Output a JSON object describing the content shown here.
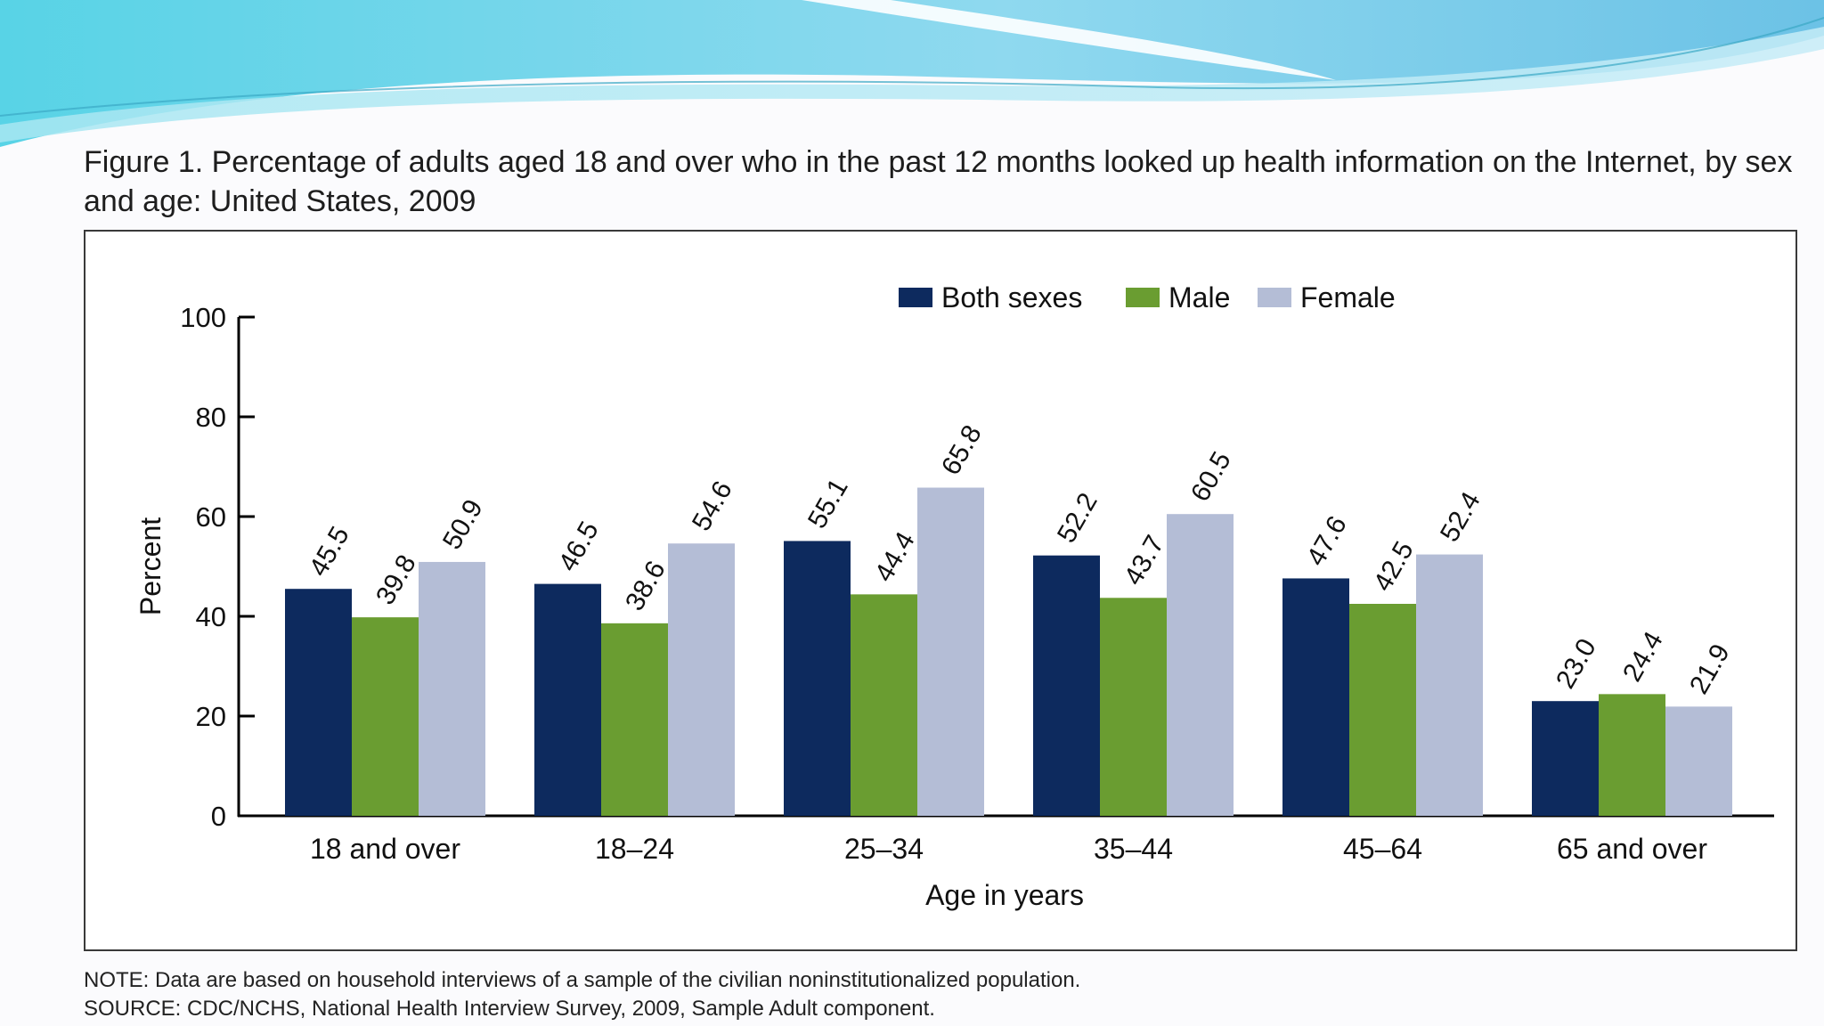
{
  "figure": {
    "title": "Figure 1. Percentage of adults aged 18 and over who in the past 12 months looked up health information on the Internet, by sex and age: United States, 2009",
    "note": "NOTE: Data are based on household interviews of a sample of the civilian noninstitutionalized population.",
    "source": "SOURCE: CDC/NCHS, National Health Interview Survey, 2009, Sample Adult component."
  },
  "chart_data": {
    "type": "bar",
    "title": "Figure 1. Percentage of adults aged 18 and over who in the past 12 months looked up health information on the Internet, by sex and age: United States, 2009",
    "xlabel": "Age in years",
    "ylabel": "Percent",
    "ylim": [
      0,
      100
    ],
    "yticks": [
      0,
      20,
      40,
      60,
      80,
      100
    ],
    "legend_position": "top",
    "grid": false,
    "categories": [
      "18 and over",
      "18–24",
      "25–34",
      "35–44",
      "45–64",
      "65 and over"
    ],
    "series": [
      {
        "name": "Both sexes",
        "color": "#0d2a5e",
        "values": [
          45.5,
          46.5,
          55.1,
          52.2,
          47.6,
          23.0
        ]
      },
      {
        "name": "Male",
        "color": "#6a9d31",
        "values": [
          39.8,
          38.6,
          44.4,
          43.7,
          42.5,
          24.4
        ]
      },
      {
        "name": "Female",
        "color": "#b4bdd6",
        "values": [
          50.9,
          54.6,
          65.8,
          60.5,
          52.4,
          21.9
        ]
      }
    ],
    "value_labels": [
      [
        "45.5",
        "46.5",
        "55.1",
        "52.2",
        "47.6",
        "23.0"
      ],
      [
        "39.8",
        "38.6",
        "44.4",
        "43.7",
        "42.5",
        "24.4"
      ],
      [
        "50.9",
        "54.6",
        "65.8",
        "60.5",
        "52.4",
        "21.9"
      ]
    ]
  }
}
